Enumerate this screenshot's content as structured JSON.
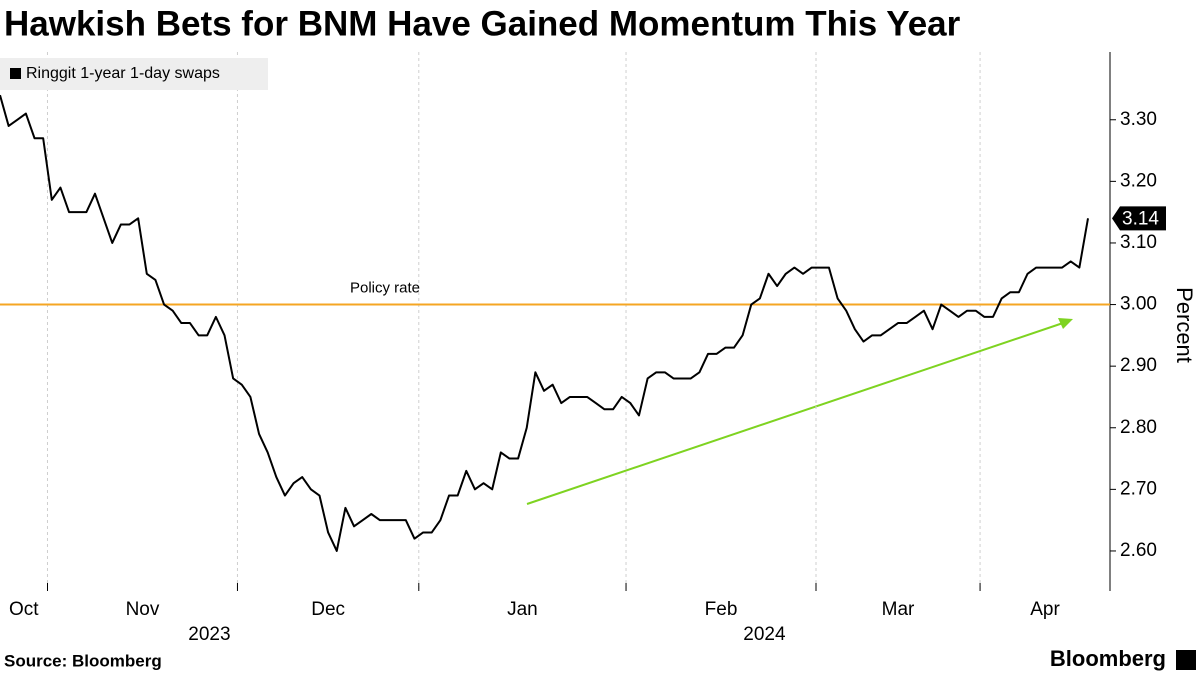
{
  "chart_data": {
    "type": "line",
    "title": "Hawkish Bets for BNM Have Gained Momentum This Year",
    "source": "Source: Bloomberg",
    "brand": "Bloomberg",
    "y_axis_label": "Percent",
    "categories": [
      "Oct",
      "Oct",
      "Oct",
      "Oct",
      "Oct",
      "Oct",
      "Nov",
      "Nov",
      "Nov",
      "Nov",
      "Nov",
      "Nov",
      "Nov",
      "Nov",
      "Nov",
      "Nov",
      "Nov",
      "Nov",
      "Nov",
      "Nov",
      "Nov",
      "Nov",
      "Nov",
      "Nov",
      "Nov",
      "Nov",
      "Nov",
      "Nov",
      "Dec",
      "Dec",
      "Dec",
      "Dec",
      "Dec",
      "Dec",
      "Dec",
      "Dec",
      "Dec",
      "Dec",
      "Dec",
      "Dec",
      "Dec",
      "Dec",
      "Dec",
      "Dec",
      "Dec",
      "Dec",
      "Dec",
      "Dec",
      "Dec",
      "Jan",
      "Jan",
      "Jan",
      "Jan",
      "Jan",
      "Jan",
      "Jan",
      "Jan",
      "Jan",
      "Jan",
      "Jan",
      "Jan",
      "Jan",
      "Jan",
      "Jan",
      "Jan",
      "Jan",
      "Jan",
      "Jan",
      "Jan",
      "Jan",
      "Jan",
      "Jan",
      "Jan",
      "Feb",
      "Feb",
      "Feb",
      "Feb",
      "Feb",
      "Feb",
      "Feb",
      "Feb",
      "Feb",
      "Feb",
      "Feb",
      "Feb",
      "Feb",
      "Feb",
      "Feb",
      "Feb",
      "Feb",
      "Feb",
      "Feb",
      "Feb",
      "Feb",
      "Feb",
      "Mar",
      "Mar",
      "Mar",
      "Mar",
      "Mar",
      "Mar",
      "Mar",
      "Mar",
      "Mar",
      "Mar",
      "Mar",
      "Mar",
      "Mar",
      "Mar",
      "Mar",
      "Mar",
      "Mar",
      "Mar",
      "Mar",
      "Apr",
      "Apr",
      "Apr",
      "Apr",
      "Apr",
      "Apr",
      "Apr",
      "Apr",
      "Apr",
      "Apr",
      "Apr",
      "Apr",
      "Apr"
    ],
    "x_groups": [
      {
        "label": "2023",
        "categories": [
          "Oct",
          "Nov",
          "Dec"
        ]
      },
      {
        "label": "2024",
        "categories": [
          "Jan",
          "Feb",
          "Mar",
          "Apr"
        ]
      }
    ],
    "series": [
      {
        "name": "Ringgit 1-year 1-day swaps",
        "color": "#000000",
        "values": [
          3.34,
          3.29,
          3.3,
          3.31,
          3.27,
          3.27,
          3.17,
          3.19,
          3.15,
          3.15,
          3.15,
          3.18,
          3.14,
          3.1,
          3.13,
          3.13,
          3.14,
          3.05,
          3.04,
          3.0,
          2.99,
          2.97,
          2.97,
          2.95,
          2.95,
          2.98,
          2.95,
          2.88,
          2.87,
          2.85,
          2.79,
          2.76,
          2.72,
          2.69,
          2.71,
          2.72,
          2.7,
          2.69,
          2.63,
          2.6,
          2.67,
          2.64,
          2.65,
          2.66,
          2.65,
          2.65,
          2.65,
          2.65,
          2.62,
          2.63,
          2.63,
          2.65,
          2.69,
          2.69,
          2.73,
          2.7,
          2.71,
          2.7,
          2.76,
          2.75,
          2.75,
          2.8,
          2.89,
          2.86,
          2.87,
          2.84,
          2.85,
          2.85,
          2.85,
          2.84,
          2.83,
          2.83,
          2.85,
          2.84,
          2.82,
          2.88,
          2.89,
          2.89,
          2.88,
          2.88,
          2.88,
          2.89,
          2.92,
          2.92,
          2.93,
          2.93,
          2.95,
          3.0,
          3.01,
          3.05,
          3.03,
          3.05,
          3.06,
          3.05,
          3.06,
          3.06,
          3.06,
          3.01,
          2.99,
          2.96,
          2.94,
          2.95,
          2.95,
          2.96,
          2.97,
          2.97,
          2.98,
          2.99,
          2.96,
          3.0,
          2.99,
          2.98,
          2.99,
          2.99,
          2.98,
          2.98,
          3.01,
          3.02,
          3.02,
          3.05,
          3.06,
          3.06,
          3.06,
          3.06,
          3.07,
          3.06,
          3.14
        ]
      }
    ],
    "reference_lines": [
      {
        "value": 3.0,
        "label": "Policy rate",
        "color": "#f5a623"
      }
    ],
    "ylim": [
      2.535,
      3.41
    ],
    "yticks": [
      {
        "value": 2.6,
        "label": "2.60"
      },
      {
        "value": 2.7,
        "label": "2.70"
      },
      {
        "value": 2.8,
        "label": "2.80"
      },
      {
        "value": 2.9,
        "label": "2.90"
      },
      {
        "value": 3.0,
        "label": "3.00"
      },
      {
        "value": 3.1,
        "label": "3.10"
      },
      {
        "value": 3.2,
        "label": "3.20"
      },
      {
        "value": 3.3,
        "label": "3.30"
      }
    ],
    "grid": "x",
    "legend": "top-left"
  }
}
